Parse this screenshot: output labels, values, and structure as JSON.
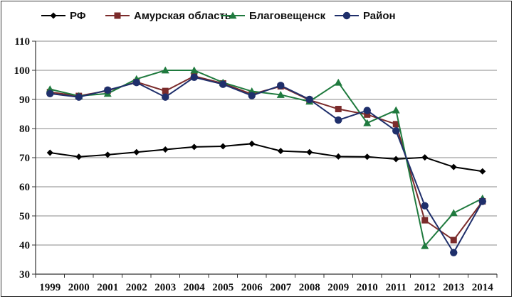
{
  "chart_data": {
    "type": "line",
    "title": "",
    "xlabel": "",
    "ylabel": "",
    "ylim": [
      30,
      110
    ],
    "yticks": [
      30,
      40,
      50,
      60,
      70,
      80,
      90,
      100,
      110
    ],
    "categories": [
      "1999",
      "2000",
      "2001",
      "2002",
      "2003",
      "2004",
      "2005",
      "2006",
      "2007",
      "2008",
      "2009",
      "2010",
      "2011",
      "2012",
      "2013",
      "2014"
    ],
    "grid": "horizontal",
    "legend_position": "top",
    "series": [
      {
        "name": "РФ",
        "color": "#000000",
        "marker": "diamond",
        "values": [
          71.7,
          70.3,
          71.0,
          71.9,
          72.8,
          73.7,
          73.9,
          74.8,
          72.3,
          71.9,
          70.4,
          70.3,
          69.5,
          70.1,
          66.8,
          65.3
        ]
      },
      {
        "name": "Амурская область",
        "color": "#7b2b2b",
        "marker": "square",
        "values": [
          92.5,
          91.2,
          93.0,
          96.0,
          92.9,
          98.0,
          95.5,
          91.8,
          94.5,
          89.8,
          86.7,
          84.8,
          81.5,
          48.5,
          41.7,
          55.0
        ]
      },
      {
        "name": "Благовещенск",
        "color": "#1f7a3e",
        "marker": "triangle",
        "values": [
          93.5,
          91.2,
          92.0,
          97.0,
          100.0,
          100.0,
          95.8,
          92.8,
          91.6,
          89.3,
          95.8,
          81.9,
          86.3,
          39.7,
          51.0,
          56.0
        ]
      },
      {
        "name": "Район",
        "color": "#1f2f6b",
        "marker": "circle",
        "values": [
          92.0,
          90.8,
          93.2,
          95.8,
          90.8,
          97.6,
          95.2,
          91.3,
          94.8,
          90.0,
          82.9,
          86.2,
          79.2,
          53.5,
          37.4,
          55.0
        ]
      }
    ]
  }
}
